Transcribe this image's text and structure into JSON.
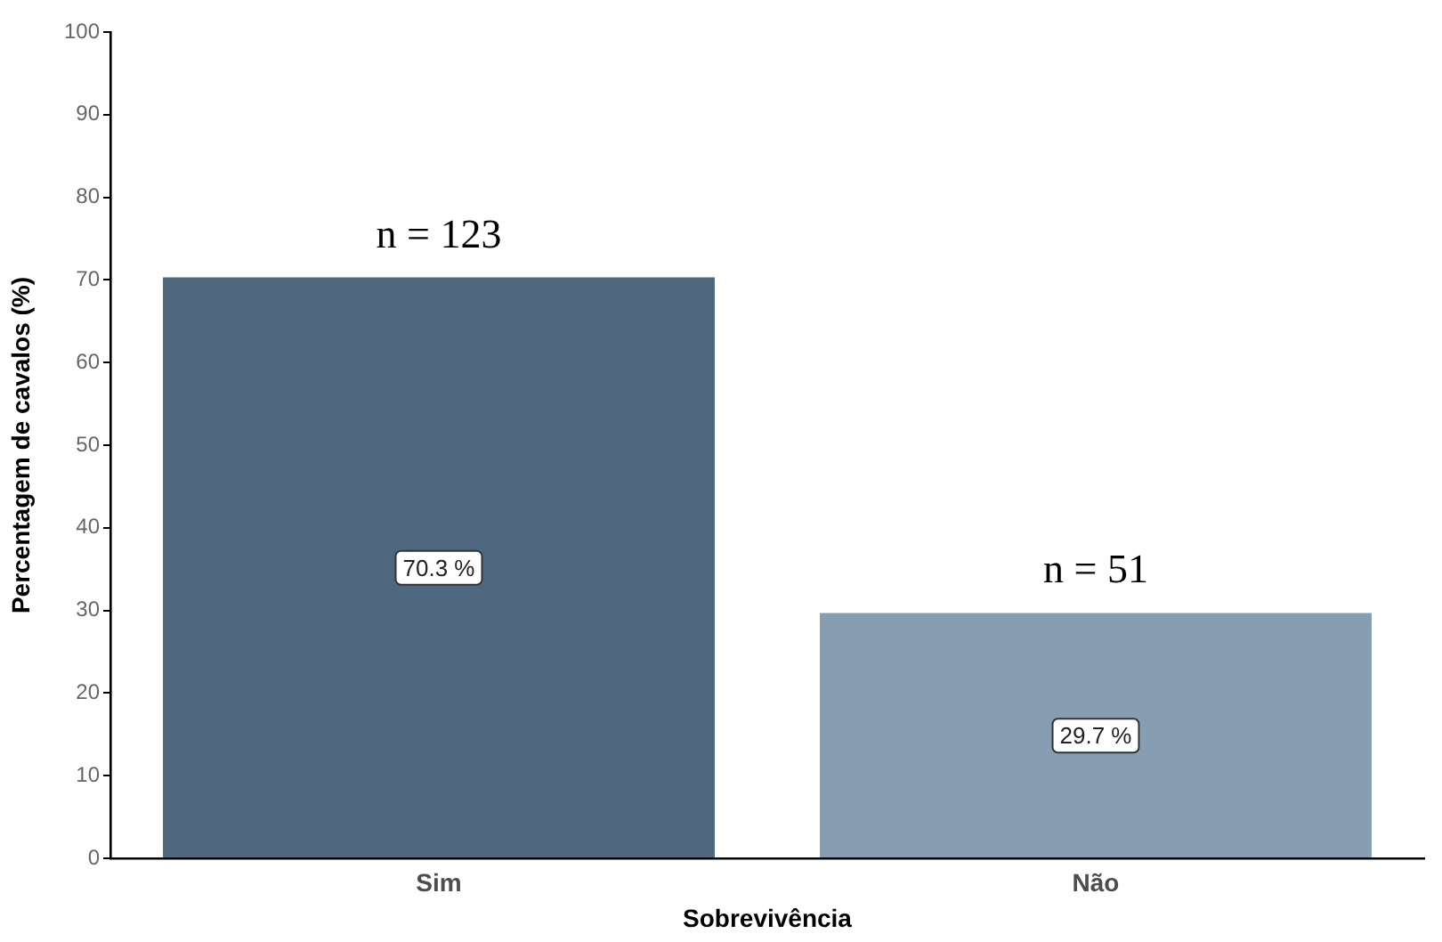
{
  "chart_data": {
    "type": "bar",
    "xlabel": "Sobrevivência",
    "ylabel": "Percentagem de cavalos (%)",
    "categories": [
      "Sim",
      "Não"
    ],
    "values": [
      70.3,
      29.7
    ],
    "colors": [
      "#4f6880",
      "#879db2"
    ],
    "value_labels": [
      "70.3 %",
      "29.7 %"
    ],
    "annotations": [
      "n = 123",
      "n = 51"
    ],
    "ylim": [
      0,
      100
    ],
    "yticks": [
      0,
      10,
      20,
      30,
      40,
      50,
      60,
      70,
      80,
      90,
      100
    ],
    "grid": false,
    "legend": false
  }
}
